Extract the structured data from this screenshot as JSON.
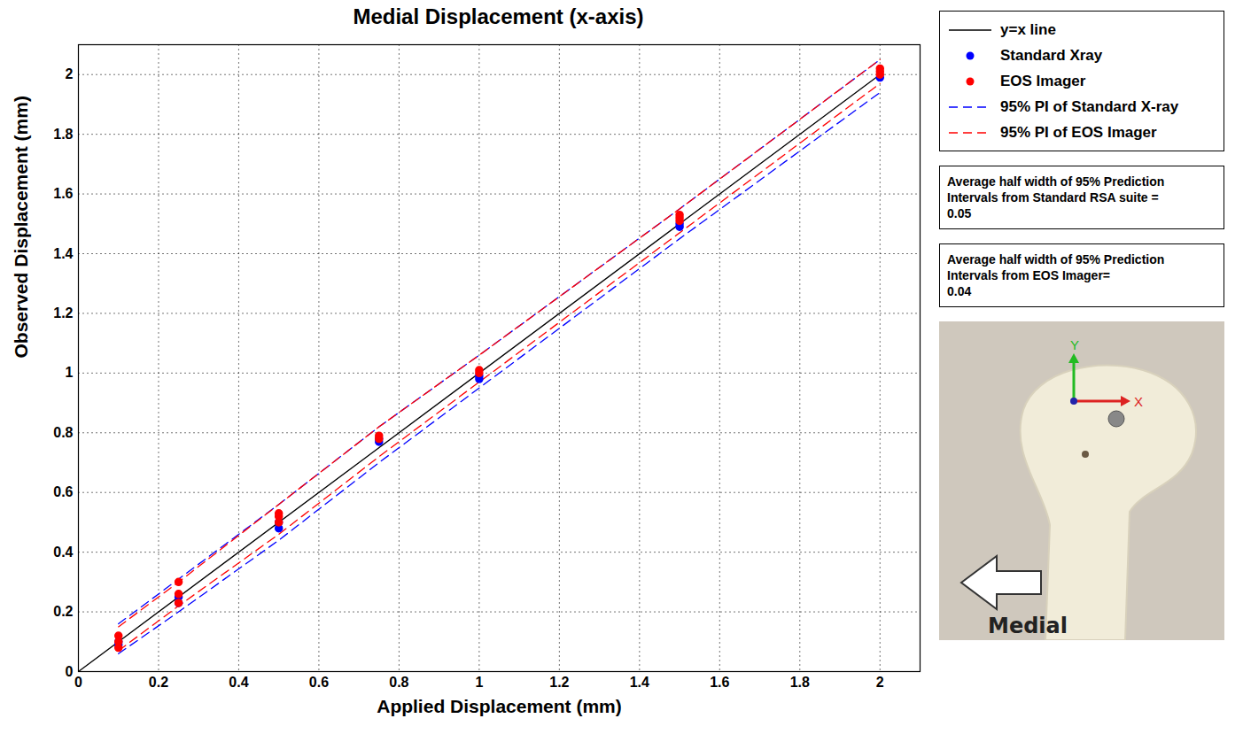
{
  "chart_data": {
    "type": "scatter",
    "title": "Medial Displacement (x-axis)",
    "x_label": "Applied Displacement (mm)",
    "y_label": "Observed Displacement (mm)",
    "xlim": [
      0,
      2.1
    ],
    "ylim": [
      0,
      2.1
    ],
    "xticks": [
      0,
      0.2,
      0.4,
      0.6,
      0.8,
      1,
      1.2,
      1.4,
      1.6,
      1.8,
      2
    ],
    "yticks": [
      0,
      0.2,
      0.4,
      0.6,
      0.8,
      1,
      1.2,
      1.4,
      1.6,
      1.8,
      2
    ],
    "grid": true,
    "legend": "right",
    "series": [
      {
        "name": "y=x line",
        "type": "line",
        "color": "#000000",
        "line_style": "solid",
        "x": [
          0,
          2
        ],
        "values": [
          0,
          2
        ]
      },
      {
        "name": "Standard Xray",
        "type": "scatter",
        "color": "#0000ff",
        "marker": "circle",
        "x": [
          0.1,
          0.1,
          0.25,
          0.25,
          0.5,
          0.5,
          0.75,
          0.75,
          1,
          1,
          1.5,
          1.5,
          2
        ],
        "values": [
          0.1,
          0.09,
          0.25,
          0.23,
          0.48,
          0.5,
          0.77,
          0.78,
          0.99,
          0.98,
          1.5,
          1.49,
          1.99
        ]
      },
      {
        "name": "EOS Imager",
        "type": "scatter",
        "color": "#ff0000",
        "marker": "circle",
        "x": [
          0.1,
          0.1,
          0.1,
          0.25,
          0.25,
          0.25,
          0.5,
          0.5,
          0.5,
          0.75,
          0.75,
          1,
          1,
          1.5,
          1.5,
          1.5,
          2,
          2,
          2
        ],
        "values": [
          0.08,
          0.1,
          0.12,
          0.23,
          0.26,
          0.3,
          0.5,
          0.52,
          0.53,
          0.78,
          0.79,
          1.01,
          1.0,
          1.51,
          1.53,
          1.52,
          2.01,
          2.02,
          2.0
        ]
      },
      {
        "name": "95% PI of Standard X-ray",
        "type": "line",
        "color": "#0000ff",
        "line_style": "dashed",
        "x": [
          0.1,
          0.25,
          0.5,
          0.75,
          1,
          1.5,
          2
        ],
        "lower": [
          0.06,
          0.2,
          0.44,
          0.7,
          0.95,
          1.45,
          1.94
        ],
        "upper": [
          0.16,
          0.31,
          0.56,
          0.82,
          1.06,
          1.55,
          2.05
        ]
      },
      {
        "name": "95% PI of EOS Imager",
        "type": "line",
        "color": "#ff0000",
        "line_style": "dashed",
        "x": [
          0.1,
          0.25,
          0.5,
          0.75,
          1,
          1.5,
          2
        ],
        "lower": [
          0.07,
          0.22,
          0.46,
          0.72,
          0.97,
          1.47,
          1.97
        ],
        "upper": [
          0.15,
          0.3,
          0.56,
          0.82,
          1.06,
          1.55,
          2.05
        ]
      }
    ],
    "annotations": [
      {
        "text": "Average half width of 95% Prediction Intervals from Standard RSA suite =",
        "value": 0.05
      },
      {
        "text": "Average half width of 95% Prediction Intervals from EOS Imager=",
        "value": 0.04
      }
    ],
    "inset": {
      "arrow_label": "Medial",
      "x_axis_label": "X",
      "y_axis_label": "Y"
    }
  }
}
